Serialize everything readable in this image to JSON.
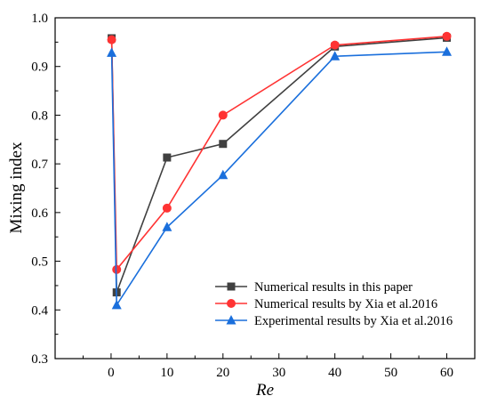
{
  "chart_data": {
    "type": "line",
    "xlabel": "Re",
    "ylabel": "Mixing index",
    "xlim": [
      -10,
      65
    ],
    "ylim": [
      0.3,
      1.0
    ],
    "xticks": [
      "0",
      "10",
      "20",
      "30",
      "40",
      "50",
      "60"
    ],
    "yticks": [
      "0.3",
      "0.4",
      "0.5",
      "0.6",
      "0.7",
      "0.8",
      "0.9",
      "1.0"
    ],
    "grid": false,
    "legend_position": "bottom-right",
    "series": [
      {
        "name": "Numerical results in this paper",
        "color": "#404040",
        "marker": "square",
        "x": [
          0.1,
          1,
          10,
          20,
          40,
          60
        ],
        "y": [
          0.958,
          0.436,
          0.713,
          0.741,
          0.941,
          0.959
        ]
      },
      {
        "name": "Numerical results by Xia et al.2016",
        "color": "#ff3333",
        "marker": "circle",
        "x": [
          0.1,
          1,
          10,
          20,
          40,
          60
        ],
        "y": [
          0.955,
          0.483,
          0.609,
          0.8,
          0.944,
          0.962
        ]
      },
      {
        "name": "Experimental results by Xia et al.2016",
        "color": "#1a6fdc",
        "marker": "triangle",
        "x": [
          0.1,
          1,
          10,
          20,
          40,
          60
        ],
        "y": [
          0.928,
          0.41,
          0.57,
          0.677,
          0.921,
          0.93
        ]
      }
    ]
  }
}
